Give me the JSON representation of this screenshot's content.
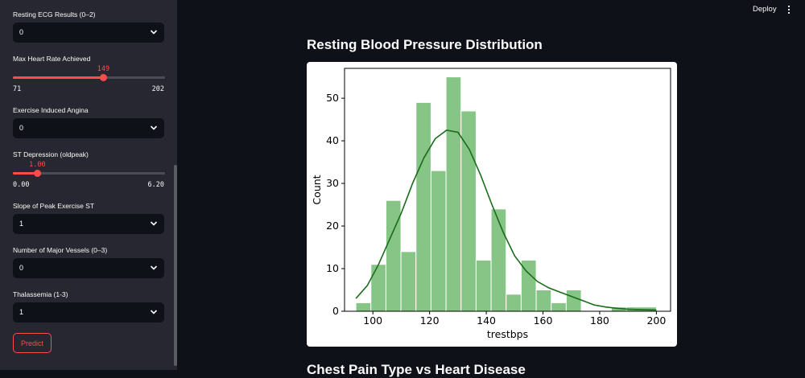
{
  "header": {
    "deploy_label": "Deploy",
    "menu_icon": "more-vertical-icon"
  },
  "sidebar": {
    "restecg": {
      "label": "Resting ECG Results (0–2)",
      "value": "0"
    },
    "thalach": {
      "label": "Max Heart Rate Achieved",
      "value": "149",
      "min": "71",
      "max": "202",
      "fraction": 0.595
    },
    "exang": {
      "label": "Exercise Induced Angina",
      "value": "0"
    },
    "oldpeak": {
      "label": "ST Depression (oldpeak)",
      "value": "1.00",
      "min": "0.00",
      "max": "6.20",
      "fraction": 0.161
    },
    "slope": {
      "label": "Slope of Peak Exercise ST",
      "value": "1"
    },
    "ca": {
      "label": "Number of Major Vessels (0–3)",
      "value": "0"
    },
    "thal": {
      "label": "Thalassemia (1-3)",
      "value": "1"
    },
    "predict_label": "Predict"
  },
  "main": {
    "section_title": "Resting Blood Pressure Distribution",
    "next_section_title": "Chest Pain Type vs Heart Disease"
  },
  "chart_data": {
    "type": "bar",
    "xlabel": "trestbps",
    "ylabel": "Count",
    "xlim": [
      90,
      205
    ],
    "ylim": [
      0,
      57
    ],
    "xticks": [
      100,
      120,
      140,
      160,
      180,
      200
    ],
    "yticks": [
      0,
      10,
      20,
      30,
      40,
      50
    ],
    "bar_color": "#86c586",
    "kde_color": "#1a6b1a",
    "bins": [
      {
        "x0": 94,
        "x1": 99.3,
        "count": 2
      },
      {
        "x0": 99.3,
        "x1": 104.6,
        "count": 11
      },
      {
        "x0": 104.6,
        "x1": 109.9,
        "count": 26
      },
      {
        "x0": 109.9,
        "x1": 115.2,
        "count": 14
      },
      {
        "x0": 115.2,
        "x1": 120.5,
        "count": 49
      },
      {
        "x0": 120.5,
        "x1": 125.8,
        "count": 33
      },
      {
        "x0": 125.8,
        "x1": 131.1,
        "count": 55
      },
      {
        "x0": 131.1,
        "x1": 136.4,
        "count": 47
      },
      {
        "x0": 136.4,
        "x1": 141.7,
        "count": 12
      },
      {
        "x0": 141.7,
        "x1": 147.0,
        "count": 24
      },
      {
        "x0": 147.0,
        "x1": 152.3,
        "count": 4
      },
      {
        "x0": 152.3,
        "x1": 157.6,
        "count": 12
      },
      {
        "x0": 157.6,
        "x1": 162.9,
        "count": 5
      },
      {
        "x0": 162.9,
        "x1": 168.2,
        "count": 2
      },
      {
        "x0": 168.2,
        "x1": 173.5,
        "count": 5
      },
      {
        "x0": 173.5,
        "x1": 178.8,
        "count": 0
      },
      {
        "x0": 178.8,
        "x1": 184.1,
        "count": 0
      },
      {
        "x0": 184.1,
        "x1": 189.4,
        "count": 1
      },
      {
        "x0": 189.4,
        "x1": 200,
        "count": 1
      }
    ],
    "kde": [
      [
        94,
        3
      ],
      [
        98,
        6
      ],
      [
        102,
        11
      ],
      [
        106,
        17
      ],
      [
        110,
        23
      ],
      [
        114,
        30
      ],
      [
        118,
        36
      ],
      [
        122,
        40.5
      ],
      [
        126,
        42.5
      ],
      [
        130,
        42
      ],
      [
        134,
        38
      ],
      [
        138,
        32
      ],
      [
        142,
        25
      ],
      [
        146,
        18.5
      ],
      [
        150,
        13
      ],
      [
        154,
        9.5
      ],
      [
        158,
        7
      ],
      [
        162,
        5.5
      ],
      [
        166,
        4.5
      ],
      [
        170,
        3.5
      ],
      [
        174,
        2.5
      ],
      [
        178,
        1.5
      ],
      [
        182,
        1
      ],
      [
        186,
        0.7
      ],
      [
        190,
        0.5
      ],
      [
        194,
        0.4
      ],
      [
        200,
        0.3
      ]
    ]
  }
}
